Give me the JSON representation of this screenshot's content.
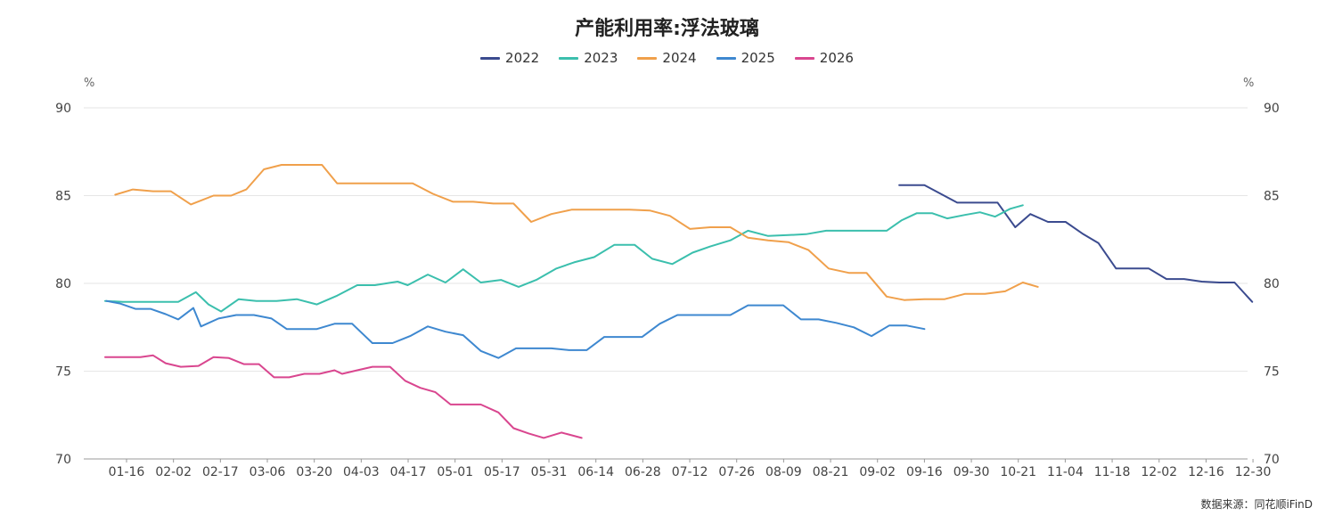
{
  "chart_data": {
    "type": "line",
    "title": "产能利用率:浮法玻璃",
    "y_unit_left": "%",
    "y_unit_right": "%",
    "ylim": [
      70,
      90
    ],
    "yticks": [
      "70",
      "75",
      "80",
      "85",
      "90"
    ],
    "x_tick_labels": [
      "01-16",
      "02-02",
      "02-17",
      "03-06",
      "03-20",
      "04-03",
      "04-17",
      "05-01",
      "05-17",
      "05-31",
      "06-14",
      "06-28",
      "07-12",
      "07-26",
      "08-09",
      "08-21",
      "09-02",
      "09-16",
      "09-30",
      "10-21",
      "11-04",
      "11-18",
      "12-02",
      "12-16",
      "12-30"
    ],
    "grid": "horizontal",
    "legend_position": "top-center",
    "source": "数据来源：同花顺iFinD",
    "series": [
      {
        "name": "2022",
        "color": "#3b4b8f",
        "points": [
          [
            31.5,
            85.6
          ],
          [
            32.5,
            85.6
          ],
          [
            33.8,
            84.6
          ],
          [
            34.6,
            84.6
          ],
          [
            35.4,
            84.6
          ],
          [
            36.1,
            83.2
          ],
          [
            36.7,
            83.95
          ],
          [
            37.4,
            83.5
          ],
          [
            38.1,
            83.5
          ],
          [
            38.8,
            82.8
          ],
          [
            39.4,
            82.3
          ],
          [
            40.1,
            80.85
          ],
          [
            40.8,
            80.85
          ],
          [
            41.4,
            80.85
          ],
          [
            42.1,
            80.25
          ],
          [
            42.8,
            80.25
          ],
          [
            43.5,
            80.1
          ],
          [
            44.2,
            80.05
          ],
          [
            44.8,
            80.05
          ],
          [
            45.5,
            78.95
          ]
        ]
      },
      {
        "name": "2023",
        "color": "#3bbfad",
        "points": [
          [
            0,
            79.0
          ],
          [
            0.7,
            78.95
          ],
          [
            1.4,
            78.95
          ],
          [
            2.2,
            78.95
          ],
          [
            2.9,
            78.95
          ],
          [
            3.6,
            79.5
          ],
          [
            4.1,
            78.8
          ],
          [
            4.6,
            78.4
          ],
          [
            5.3,
            79.1
          ],
          [
            6.0,
            79.0
          ],
          [
            6.8,
            79.0
          ],
          [
            7.6,
            79.1
          ],
          [
            8.4,
            78.8
          ],
          [
            9.2,
            79.3
          ],
          [
            10.0,
            79.9
          ],
          [
            10.7,
            79.9
          ],
          [
            11.6,
            80.1
          ],
          [
            12.0,
            79.9
          ],
          [
            12.8,
            80.5
          ],
          [
            13.5,
            80.05
          ],
          [
            14.2,
            80.8
          ],
          [
            14.9,
            80.05
          ],
          [
            15.7,
            80.2
          ],
          [
            16.4,
            79.8
          ],
          [
            17.1,
            80.2
          ],
          [
            17.9,
            80.85
          ],
          [
            18.6,
            81.2
          ],
          [
            19.4,
            81.5
          ],
          [
            20.2,
            82.2
          ],
          [
            21.0,
            82.2
          ],
          [
            21.7,
            81.4
          ],
          [
            22.5,
            81.1
          ],
          [
            23.3,
            81.75
          ],
          [
            24.0,
            82.1
          ],
          [
            24.8,
            82.45
          ],
          [
            25.5,
            83.0
          ],
          [
            26.3,
            82.7
          ],
          [
            27.1,
            82.75
          ],
          [
            27.8,
            82.8
          ],
          [
            28.6,
            83.0
          ],
          [
            29.4,
            83.0
          ],
          [
            30.2,
            83.0
          ],
          [
            31.0,
            83.0
          ],
          [
            31.6,
            83.6
          ],
          [
            32.2,
            84.0
          ],
          [
            32.8,
            84.0
          ],
          [
            33.4,
            83.7
          ],
          [
            34.1,
            83.9
          ],
          [
            34.7,
            84.05
          ],
          [
            35.3,
            83.8
          ],
          [
            35.9,
            84.25
          ],
          [
            36.4,
            84.45
          ]
        ]
      },
      {
        "name": "2024",
        "color": "#f0a04b",
        "points": [
          [
            0.4,
            85.05
          ],
          [
            1.1,
            85.35
          ],
          [
            1.9,
            85.25
          ],
          [
            2.6,
            85.25
          ],
          [
            3.4,
            84.5
          ],
          [
            4.3,
            85.0
          ],
          [
            5.0,
            85.0
          ],
          [
            5.6,
            85.35
          ],
          [
            6.3,
            86.5
          ],
          [
            7.0,
            86.75
          ],
          [
            7.8,
            86.75
          ],
          [
            8.6,
            86.75
          ],
          [
            9.2,
            85.7
          ],
          [
            10.0,
            85.7
          ],
          [
            10.8,
            85.7
          ],
          [
            11.6,
            85.7
          ],
          [
            12.2,
            85.7
          ],
          [
            13.0,
            85.1
          ],
          [
            13.8,
            84.65
          ],
          [
            14.6,
            84.65
          ],
          [
            15.4,
            84.55
          ],
          [
            16.2,
            84.55
          ],
          [
            16.9,
            83.5
          ],
          [
            17.7,
            83.95
          ],
          [
            18.5,
            84.2
          ],
          [
            19.2,
            84.2
          ],
          [
            20.0,
            84.2
          ],
          [
            20.8,
            84.2
          ],
          [
            21.6,
            84.15
          ],
          [
            22.4,
            83.85
          ],
          [
            23.2,
            83.1
          ],
          [
            24.0,
            83.2
          ],
          [
            24.8,
            83.2
          ],
          [
            25.5,
            82.6
          ],
          [
            26.3,
            82.45
          ],
          [
            27.1,
            82.35
          ],
          [
            27.9,
            81.9
          ],
          [
            28.7,
            80.85
          ],
          [
            29.5,
            80.6
          ],
          [
            30.2,
            80.6
          ],
          [
            31.0,
            79.25
          ],
          [
            31.7,
            79.05
          ],
          [
            32.5,
            79.1
          ],
          [
            33.3,
            79.1
          ],
          [
            34.1,
            79.4
          ],
          [
            34.9,
            79.4
          ],
          [
            35.7,
            79.55
          ],
          [
            36.4,
            80.05
          ],
          [
            37.0,
            79.8
          ]
        ]
      },
      {
        "name": "2025",
        "color": "#3e88d0",
        "points": [
          [
            0.05,
            79.0
          ],
          [
            0.6,
            78.85
          ],
          [
            1.2,
            78.55
          ],
          [
            1.8,
            78.55
          ],
          [
            2.4,
            78.25
          ],
          [
            2.9,
            77.95
          ],
          [
            3.5,
            78.6
          ],
          [
            3.8,
            77.55
          ],
          [
            4.5,
            78.0
          ],
          [
            5.2,
            78.2
          ],
          [
            5.9,
            78.2
          ],
          [
            6.6,
            78.0
          ],
          [
            7.2,
            77.4
          ],
          [
            7.8,
            77.4
          ],
          [
            8.4,
            77.4
          ],
          [
            9.1,
            77.7
          ],
          [
            9.8,
            77.7
          ],
          [
            10.6,
            76.6
          ],
          [
            11.4,
            76.6
          ],
          [
            12.1,
            77.0
          ],
          [
            12.8,
            77.55
          ],
          [
            13.5,
            77.25
          ],
          [
            14.2,
            77.05
          ],
          [
            14.9,
            76.15
          ],
          [
            15.6,
            75.75
          ],
          [
            16.3,
            76.3
          ],
          [
            17.0,
            76.3
          ],
          [
            17.7,
            76.3
          ],
          [
            18.4,
            76.2
          ],
          [
            19.1,
            76.2
          ],
          [
            19.8,
            76.95
          ],
          [
            20.5,
            76.95
          ],
          [
            21.3,
            76.95
          ],
          [
            22.0,
            77.7
          ],
          [
            22.7,
            78.2
          ],
          [
            23.4,
            78.2
          ],
          [
            24.1,
            78.2
          ],
          [
            24.8,
            78.2
          ],
          [
            25.5,
            78.75
          ],
          [
            26.2,
            78.75
          ],
          [
            26.9,
            78.75
          ],
          [
            27.6,
            77.95
          ],
          [
            28.3,
            77.95
          ],
          [
            29.0,
            77.75
          ],
          [
            29.7,
            77.5
          ],
          [
            30.4,
            77.0
          ],
          [
            31.1,
            77.6
          ],
          [
            31.8,
            77.6
          ],
          [
            32.5,
            77.4
          ]
        ]
      },
      {
        "name": "2026",
        "color": "#d9468f",
        "points": [
          [
            0.0,
            75.8
          ],
          [
            0.7,
            75.8
          ],
          [
            1.4,
            75.8
          ],
          [
            1.9,
            75.9
          ],
          [
            2.4,
            75.45
          ],
          [
            3.0,
            75.25
          ],
          [
            3.7,
            75.3
          ],
          [
            4.3,
            75.8
          ],
          [
            4.9,
            75.75
          ],
          [
            5.5,
            75.4
          ],
          [
            6.1,
            75.4
          ],
          [
            6.7,
            74.65
          ],
          [
            7.3,
            74.65
          ],
          [
            7.9,
            74.85
          ],
          [
            8.5,
            74.85
          ],
          [
            9.1,
            75.05
          ],
          [
            9.4,
            74.85
          ],
          [
            10.0,
            75.05
          ],
          [
            10.6,
            75.25
          ],
          [
            11.3,
            75.25
          ],
          [
            11.9,
            74.45
          ],
          [
            12.5,
            74.05
          ],
          [
            13.1,
            73.8
          ],
          [
            13.7,
            73.1
          ],
          [
            14.3,
            73.1
          ],
          [
            14.9,
            73.1
          ],
          [
            15.6,
            72.65
          ],
          [
            16.2,
            71.75
          ],
          [
            16.8,
            71.45
          ],
          [
            17.4,
            71.2
          ],
          [
            18.1,
            71.5
          ],
          [
            18.9,
            71.2
          ]
        ]
      }
    ]
  }
}
